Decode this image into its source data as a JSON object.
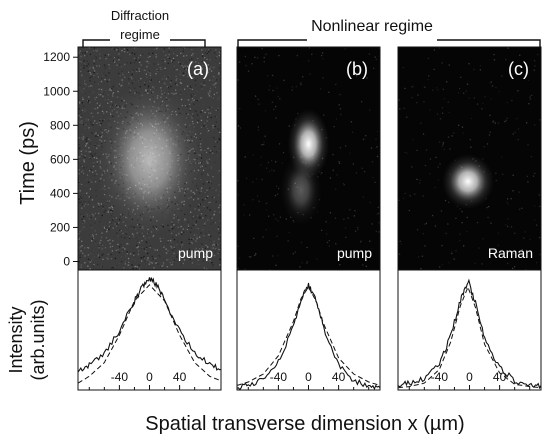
{
  "figure": {
    "header_left": "Diffraction\nregime",
    "header_right": "Nonlinear regime",
    "y_axis_top_label": "Time (ps)",
    "y_axis_bottom_label_line1": "Intensity",
    "y_axis_bottom_label_line2": "(arb.units)",
    "x_axis_label": "Spatial transverse dimension x (µm)"
  },
  "panels": [
    {
      "tag": "(a)",
      "label": "pump"
    },
    {
      "tag": "(b)",
      "label": "pump"
    },
    {
      "tag": "(c)",
      "label": "Raman"
    }
  ],
  "chart_data": [
    {
      "type": "heatmap",
      "panel": "(a)",
      "caption": "pump",
      "y_label": "Time (ps)",
      "y_ticks": [
        0,
        200,
        400,
        600,
        800,
        1000,
        1200
      ],
      "ylim": [
        -50,
        1260
      ],
      "spots": [
        {
          "x_um": 0,
          "t_ps": 600,
          "sx_um": 32,
          "st_ps": 200,
          "peak": 0.65
        }
      ],
      "background": "noisy gray",
      "noise_level": 0.12
    },
    {
      "type": "heatmap",
      "panel": "(b)",
      "caption": "pump",
      "ylim": [
        -50,
        1260
      ],
      "spots": [
        {
          "x_um": 0,
          "t_ps": 690,
          "sx_um": 12,
          "st_ps": 90,
          "peak": 1.0
        },
        {
          "x_um": -10,
          "t_ps": 420,
          "sx_um": 12,
          "st_ps": 90,
          "peak": 0.35
        }
      ],
      "background": "black",
      "noise_level": 0.02
    },
    {
      "type": "heatmap",
      "panel": "(c)",
      "caption": "Raman",
      "ylim": [
        -50,
        1260
      ],
      "spots": [
        {
          "x_um": -2,
          "t_ps": 470,
          "sx_um": 15,
          "st_ps": 70,
          "peak": 1.0
        }
      ],
      "background": "black",
      "noise_level": 0.02
    },
    {
      "type": "line",
      "panel": "(a)",
      "y_label": "Intensity (arb.units)",
      "xlabel": "Spatial transverse dimension x (µm)",
      "x_ticks": [
        -40,
        0,
        40
      ],
      "xlim": [
        -95,
        95
      ],
      "ylim": [
        0,
        1.05
      ],
      "series": [
        {
          "style": "solid",
          "x": [
            -95,
            -80,
            -60,
            -40,
            -20,
            -10,
            0,
            10,
            20,
            40,
            60,
            80,
            95
          ],
          "y": [
            0.16,
            0.22,
            0.32,
            0.52,
            0.78,
            0.9,
            0.98,
            0.92,
            0.78,
            0.52,
            0.32,
            0.22,
            0.18
          ]
        },
        {
          "style": "dashed",
          "x": [
            -95,
            -80,
            -60,
            -40,
            -20,
            0,
            20,
            40,
            60,
            80,
            95
          ],
          "y": [
            0.06,
            0.12,
            0.24,
            0.48,
            0.78,
            0.92,
            0.78,
            0.48,
            0.24,
            0.12,
            0.08
          ]
        }
      ]
    },
    {
      "type": "line",
      "panel": "(b)",
      "x_ticks": [
        -40,
        0,
        40
      ],
      "xlim": [
        -95,
        95
      ],
      "ylim": [
        0,
        1.05
      ],
      "series": [
        {
          "style": "solid",
          "x": [
            -95,
            -80,
            -60,
            -40,
            -20,
            -10,
            0,
            10,
            20,
            40,
            60,
            80,
            95
          ],
          "y": [
            0.02,
            0.04,
            0.1,
            0.25,
            0.55,
            0.78,
            0.92,
            0.8,
            0.55,
            0.22,
            0.08,
            0.03,
            0.02
          ]
        },
        {
          "style": "dashed",
          "x": [
            -95,
            -80,
            -60,
            -40,
            -20,
            -10,
            0,
            10,
            20,
            40,
            60,
            80,
            95
          ],
          "y": [
            0.04,
            0.07,
            0.14,
            0.3,
            0.6,
            0.8,
            0.9,
            0.78,
            0.58,
            0.28,
            0.14,
            0.07,
            0.04
          ]
        }
      ]
    },
    {
      "type": "line",
      "panel": "(c)",
      "x_ticks": [
        -40,
        0,
        40
      ],
      "xlim": [
        -95,
        95
      ],
      "ylim": [
        0,
        1.05
      ],
      "series": [
        {
          "style": "solid",
          "x": [
            -95,
            -80,
            -60,
            -40,
            -25,
            -12,
            -2,
            8,
            20,
            40,
            60,
            80,
            95
          ],
          "y": [
            0.04,
            0.06,
            0.1,
            0.22,
            0.48,
            0.78,
            0.96,
            0.76,
            0.45,
            0.2,
            0.08,
            0.05,
            0.04
          ]
        },
        {
          "style": "dashed",
          "x": [
            -95,
            -80,
            -60,
            -40,
            -25,
            -12,
            -2,
            8,
            20,
            40,
            60,
            80,
            95
          ],
          "y": [
            0.02,
            0.03,
            0.06,
            0.18,
            0.42,
            0.74,
            0.9,
            0.72,
            0.4,
            0.15,
            0.05,
            0.03,
            0.02
          ]
        }
      ]
    }
  ]
}
